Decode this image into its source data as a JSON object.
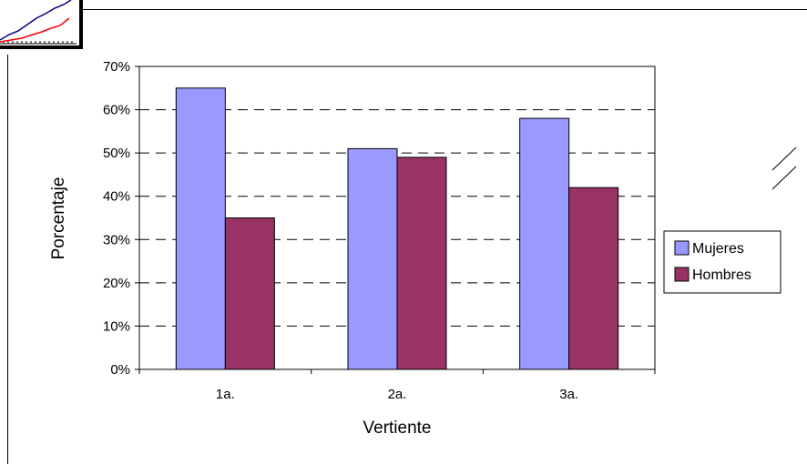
{
  "chart_data": {
    "type": "bar",
    "categories": [
      "1a.",
      "2a.",
      "3a."
    ],
    "series": [
      {
        "name": "Mujeres",
        "color": "#9999ff",
        "values": [
          65,
          51,
          58
        ]
      },
      {
        "name": "Hombres",
        "color": "#993366",
        "values": [
          35,
          49,
          42
        ]
      }
    ],
    "title": "",
    "xlabel": "Vertiente",
    "ylabel": "Porcentaje",
    "ylim": [
      0,
      70
    ],
    "ytick_step": 10,
    "ytick_suffix": "%",
    "grid": "horizontal-dashed",
    "legend": "right"
  },
  "decoration": {
    "logo_icon": "line-chart-thumbnail-icon",
    "logo_colors": [
      "#000080",
      "#ff0000"
    ]
  }
}
